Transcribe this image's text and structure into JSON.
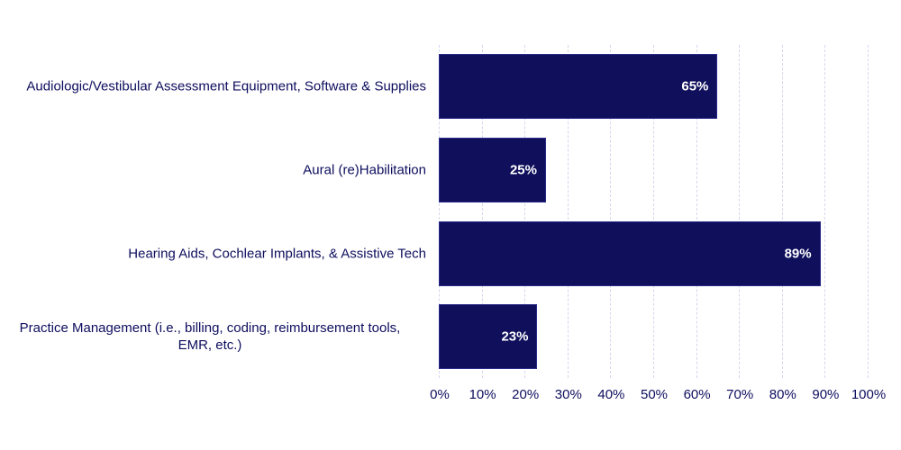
{
  "chart_data": {
    "type": "bar",
    "orientation": "horizontal",
    "title": "",
    "xlabel": "",
    "ylabel": "",
    "categories": [
      "Audiologic/Vestibular Assessment Equipment, Software & Supplies",
      "Aural (re)Habilitation",
      "Hearing Aids, Cochlear Implants, & Assistive Tech",
      "Practice Management (i.e., billing, coding, reimbursement tools, EMR, etc.)"
    ],
    "values": [
      65,
      25,
      89,
      23
    ],
    "value_labels": [
      "65%",
      "25%",
      "89%",
      "23%"
    ],
    "xlim": [
      0,
      100
    ],
    "x_ticks": [
      "0%",
      "10%",
      "20%",
      "30%",
      "40%",
      "50%",
      "60%",
      "70%",
      "80%",
      "90%",
      "100%"
    ],
    "grid": true,
    "legend": null,
    "bar_color": "#0f0f5c"
  },
  "labels": {
    "cat0": "Audiologic/Vestibular Assessment Equipment, Software & Supplies",
    "cat1": "Aural (re)Habilitation",
    "cat2": "Hearing Aids, Cochlear Implants, & Assistive Tech",
    "cat3_line1": "Practice Management (i.e., billing, coding, reimbursement tools,",
    "cat3_line2": "EMR, etc.)"
  }
}
